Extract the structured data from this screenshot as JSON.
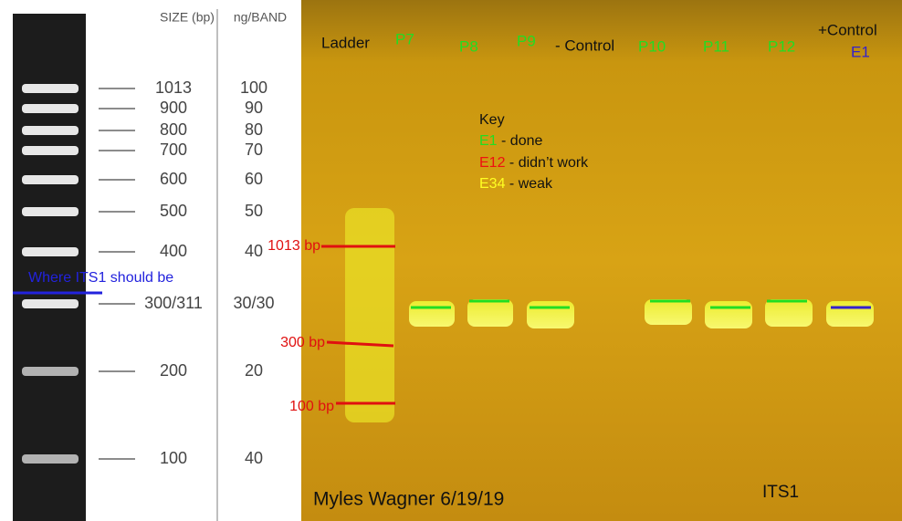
{
  "ladder_panel": {
    "header_size": "SIZE (bp)",
    "header_ng": "ng/BAND",
    "sizes": [
      "1013",
      "900",
      "800",
      "700",
      "600",
      "500",
      "400",
      "300/311",
      "200",
      "100"
    ],
    "ng": [
      "100",
      "90",
      "80",
      "70",
      "60",
      "50",
      "40",
      "30/30",
      "20",
      "40"
    ],
    "note": "Where ITS1 should be"
  },
  "gel": {
    "lanes": [
      "Ladder",
      "P7",
      "P8",
      "P9",
      "- Control",
      "P10",
      "P11",
      "P12",
      "+Control"
    ],
    "control_code": "E1",
    "key": {
      "title": "Key",
      "items": [
        {
          "code": "E1",
          "text": "- done"
        },
        {
          "code": "E12",
          "text": "- didn’t work"
        },
        {
          "code": "E34",
          "text": "- weak"
        }
      ]
    },
    "markers": [
      "1013 bp",
      "300 bp",
      "100 bp"
    ],
    "author": "Myles Wagner 6/19/19",
    "gene": "ITS1"
  }
}
